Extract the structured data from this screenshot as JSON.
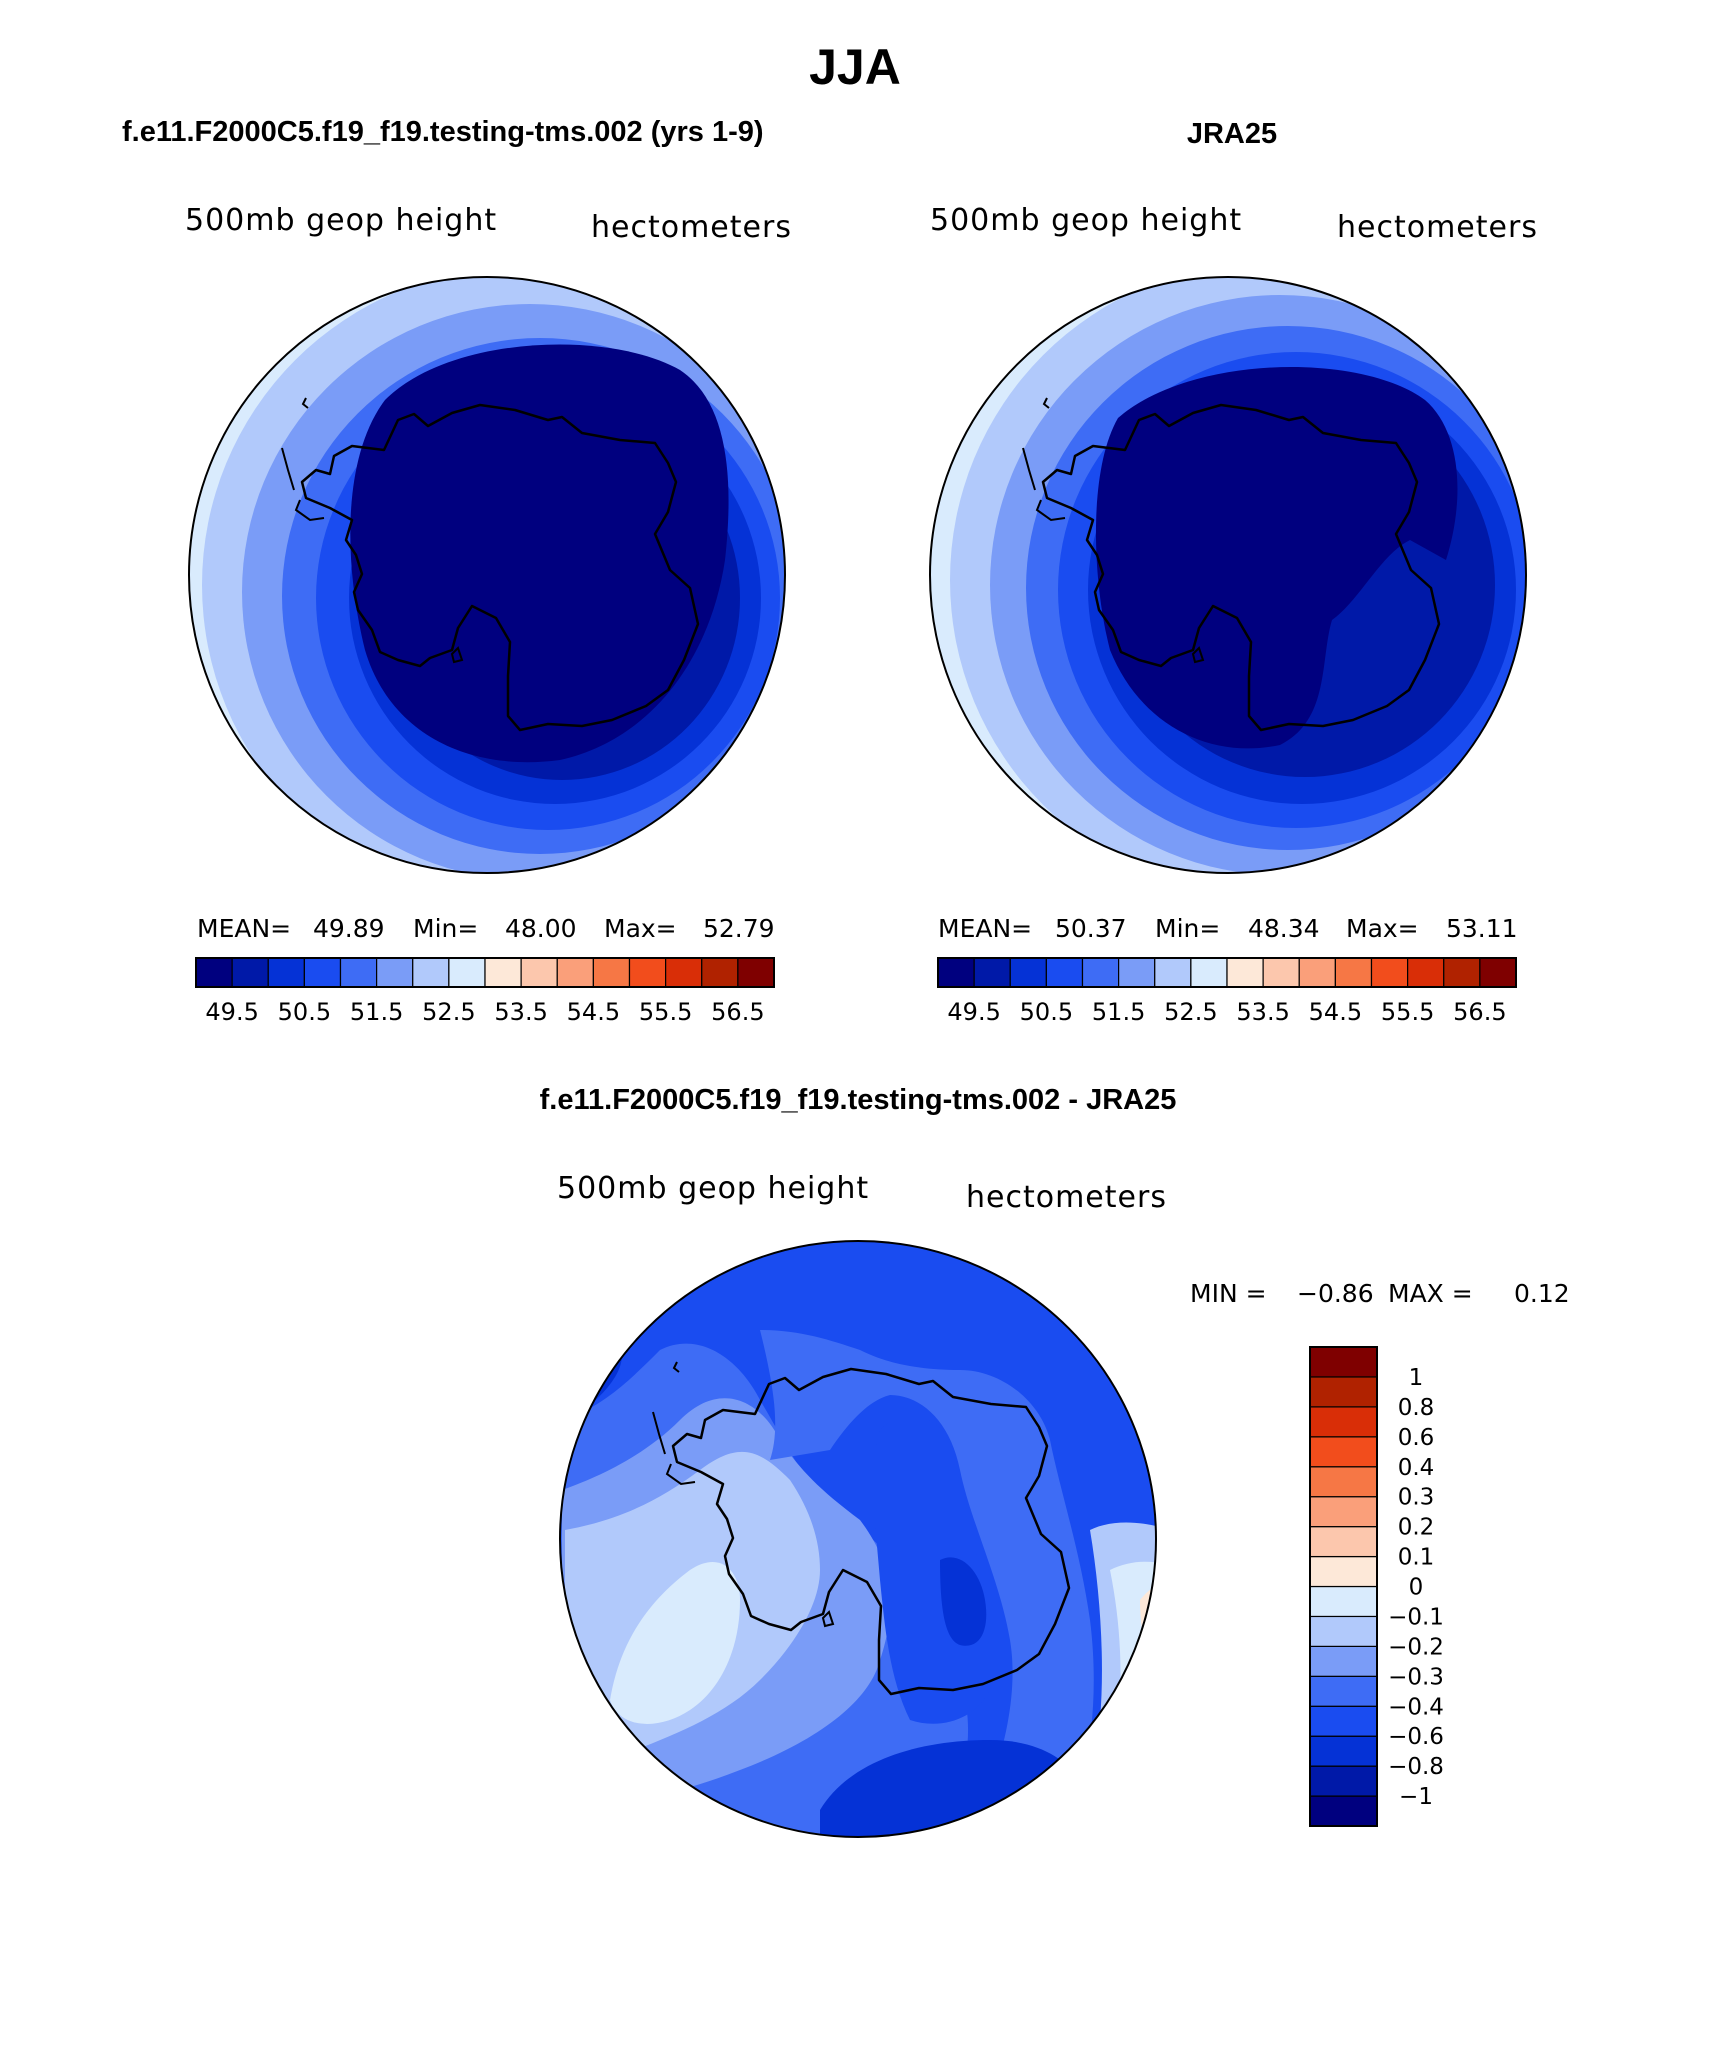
{
  "title": "JJA",
  "panels": [
    {
      "heading": "f.e11.F2000C5.f19_f19.testing-tms.002 (yrs 1-9)",
      "variable": "500mb geop height",
      "units": "hectometers",
      "stats": {
        "mean_label": "MEAN=",
        "mean": "49.89",
        "min_label": "Min=",
        "min": "48.00",
        "max_label": "Max=",
        "max": "52.79"
      }
    },
    {
      "heading": "JRA25",
      "variable": "500mb geop height",
      "units": "hectometers",
      "stats": {
        "mean_label": "MEAN=",
        "mean": "50.37",
        "min_label": "Min=",
        "min": "48.34",
        "max_label": "Max=",
        "max": "53.11"
      }
    }
  ],
  "diff_panel": {
    "heading": "f.e11.F2000C5.f19_f19.testing-tms.002 - JRA25",
    "variable": "500mb geop height",
    "units": "hectometers",
    "stats": {
      "min_label": "MIN =",
      "min": "−0.86",
      "max_label": "MAX =",
      "max": "0.12"
    }
  },
  "colorbar_main": {
    "colors": [
      "#00007f",
      "#0019a8",
      "#0532d6",
      "#1a4cf0",
      "#3e6cf5",
      "#7a9cf7",
      "#b1c9fb",
      "#d9ebfd",
      "#fde8d8",
      "#fcc7ad",
      "#fa9f7a",
      "#f67745",
      "#f24d1c",
      "#d92e07",
      "#b02200",
      "#7f0000"
    ],
    "labels": [
      "49.5",
      "50.5",
      "51.5",
      "52.5",
      "53.5",
      "54.5",
      "55.5",
      "56.5"
    ]
  },
  "colorbar_diff": {
    "colors_bottom_to_top": [
      "#00007f",
      "#0019a8",
      "#0532d6",
      "#1a4cf0",
      "#3e6cf5",
      "#7a9cf7",
      "#b1c9fb",
      "#d9ebfd",
      "#fde8d8",
      "#fcc7ad",
      "#fa9f7a",
      "#f67745",
      "#f24d1c",
      "#d92e07",
      "#b02200",
      "#7f0000"
    ],
    "labels_top_to_bottom": [
      "1",
      "0.8",
      "0.6",
      "0.4",
      "0.3",
      "0.2",
      "0.1",
      "0",
      "−0.1",
      "−0.2",
      "−0.3",
      "−0.4",
      "−0.6",
      "−0.8",
      "−1"
    ]
  }
}
